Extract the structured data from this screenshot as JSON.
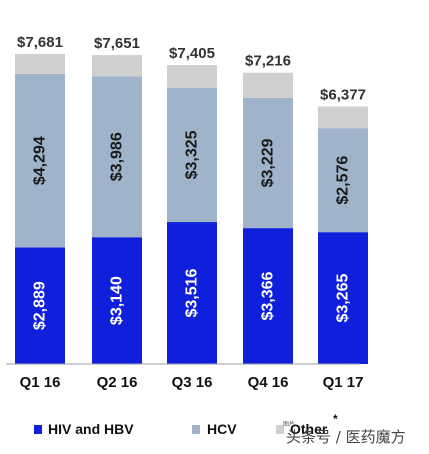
{
  "chart_data": {
    "type": "bar",
    "stacked": true,
    "categories": [
      "Q1 16",
      "Q2 16",
      "Q3 16",
      "Q4 16",
      "Q1 17"
    ],
    "totals": [
      "$7,681",
      "$7,651",
      "$7,405",
      "$7,216",
      "$6,377"
    ],
    "total_values": [
      7681,
      7651,
      7405,
      7216,
      6377
    ],
    "series": [
      {
        "name": "HIV and HBV",
        "color": "#0f1fdc",
        "label_color": "#ffffff",
        "values": [
          2889,
          3140,
          3516,
          3366,
          3265
        ],
        "labels": [
          "$2,889",
          "$3,140",
          "$3,516",
          "$3,366",
          "$3,265"
        ]
      },
      {
        "name": "HCV",
        "color": "#9fb3cb",
        "label_color": "#1a1a1a",
        "values": [
          4294,
          3986,
          3325,
          3229,
          2576
        ],
        "labels": [
          "$4,294",
          "$3,986",
          "$3,325",
          "$3,229",
          "$2,576"
        ]
      },
      {
        "name": "Other",
        "color": "#cfcfcf",
        "values": [
          498,
          525,
          564,
          621,
          536
        ]
      }
    ],
    "legend": {
      "placement": "bottom",
      "items": [
        "HIV and HBV",
        "HCV",
        "Other"
      ],
      "other_marker": "*"
    },
    "ylim": [
      0,
      8000
    ],
    "grid": false,
    "title": "",
    "xlabel": "",
    "ylabel": ""
  },
  "watermark": {
    "text": "头条号 / 医药魔方",
    "small_text": "图片"
  }
}
